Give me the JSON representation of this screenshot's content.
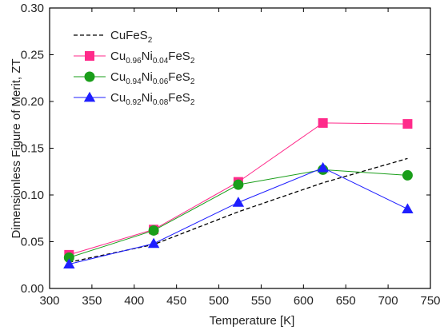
{
  "chart_data": {
    "type": "line",
    "title": "",
    "xlabel": "Temperature [K]",
    "ylabel": "Dimensionless Figure of Merit, ZT",
    "xlim": [
      300,
      750
    ],
    "ylim": [
      0.0,
      0.3
    ],
    "xticks": [
      "300",
      "350",
      "400",
      "450",
      "500",
      "550",
      "600",
      "650",
      "700",
      "750"
    ],
    "yticks": [
      "0.00",
      "0.05",
      "0.10",
      "0.15",
      "0.20",
      "0.25",
      "0.30"
    ],
    "grid": false,
    "legend_position": "top-left",
    "series": [
      {
        "name": "CuFeS2",
        "name_parts": [
          {
            "t": "CuFeS"
          },
          {
            "t": "2",
            "sub": true
          }
        ],
        "x": [
          323,
          423,
          523,
          623,
          723
        ],
        "y": [
          0.028,
          0.047,
          0.082,
          0.113,
          0.139
        ],
        "color": "#000000",
        "line_style": "dashed",
        "marker": "none"
      },
      {
        "name": "Cu0.96Ni0.04FeS2",
        "name_parts": [
          {
            "t": "Cu"
          },
          {
            "t": "0.96",
            "sub": true
          },
          {
            "t": "Ni"
          },
          {
            "t": "0.04",
            "sub": true
          },
          {
            "t": "FeS"
          },
          {
            "t": "2",
            "sub": true
          }
        ],
        "x": [
          323,
          423,
          523,
          623,
          723
        ],
        "y": [
          0.036,
          0.063,
          0.114,
          0.177,
          0.176
        ],
        "color": "#ff2a8a",
        "line_style": "solid",
        "marker": "square"
      },
      {
        "name": "Cu0.94Ni0.06FeS2",
        "name_parts": [
          {
            "t": "Cu"
          },
          {
            "t": "0.94",
            "sub": true
          },
          {
            "t": "Ni"
          },
          {
            "t": "0.06",
            "sub": true
          },
          {
            "t": "FeS"
          },
          {
            "t": "2",
            "sub": true
          }
        ],
        "x": [
          323,
          423,
          523,
          623,
          723
        ],
        "y": [
          0.033,
          0.062,
          0.111,
          0.127,
          0.121
        ],
        "color": "#1a9e1a",
        "line_style": "solid",
        "marker": "circle"
      },
      {
        "name": "Cu0.92Ni0.08FeS2",
        "name_parts": [
          {
            "t": "Cu"
          },
          {
            "t": "0.92",
            "sub": true
          },
          {
            "t": "Ni"
          },
          {
            "t": "0.08",
            "sub": true
          },
          {
            "t": "FeS"
          },
          {
            "t": "2",
            "sub": true
          }
        ],
        "x": [
          323,
          423,
          523,
          623,
          723
        ],
        "y": [
          0.026,
          0.048,
          0.092,
          0.129,
          0.085
        ],
        "color": "#1f1fff",
        "line_style": "solid",
        "marker": "triangle"
      }
    ]
  }
}
